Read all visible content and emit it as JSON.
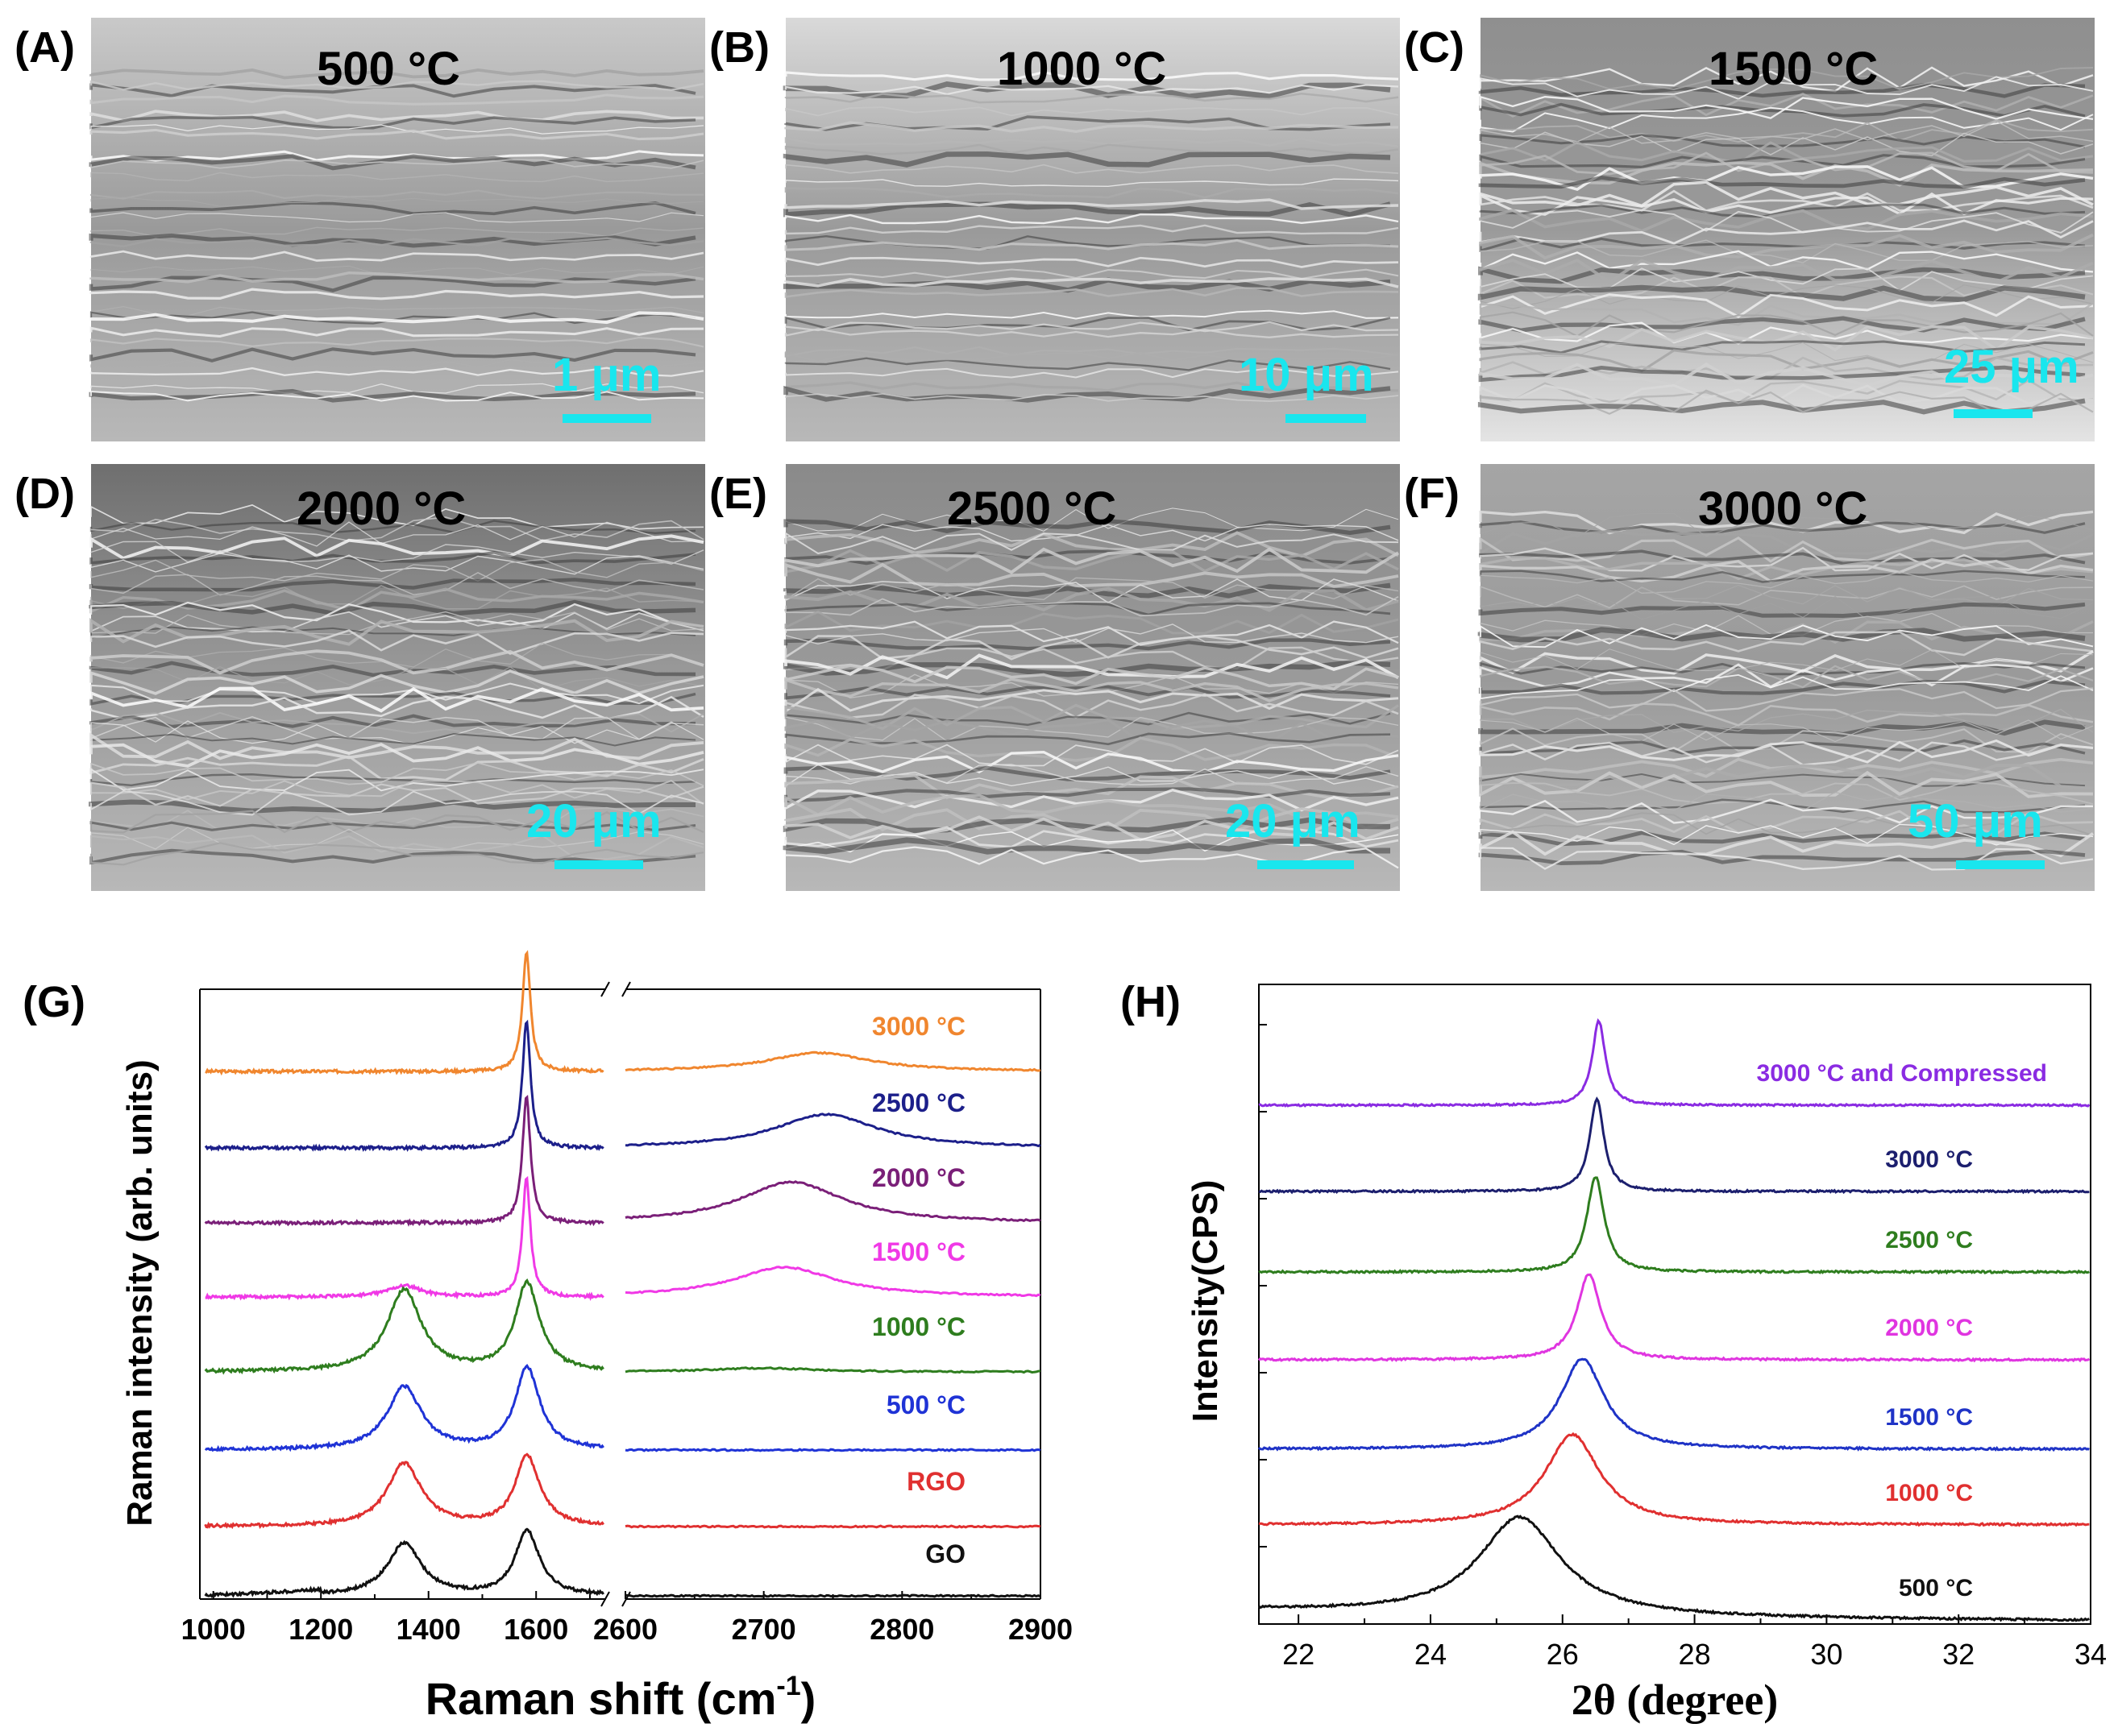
{
  "figure": {
    "sem_panels": [
      {
        "label": "(A)",
        "temperature": "500 °C",
        "scale_bar": "1 μm"
      },
      {
        "label": "(B)",
        "temperature": "1000 °C",
        "scale_bar": "10 μm"
      },
      {
        "label": "(C)",
        "temperature": "1500 °C",
        "scale_bar": "25 μm"
      },
      {
        "label": "(D)",
        "temperature": "2000 °C",
        "scale_bar": "20 μm"
      },
      {
        "label": "(E)",
        "temperature": "2500 °C",
        "scale_bar": "20 μm"
      },
      {
        "label": "(F)",
        "temperature": "3000 °C",
        "scale_bar": "50 μm"
      }
    ],
    "colors": {
      "scale_bar": "#19e6ee"
    }
  },
  "chart_data": [
    {
      "panel": "(G)",
      "type": "line",
      "xlabel": "Raman shift (cm",
      "xlabel_superscript": "-1",
      "xlabel_close": ")",
      "ylabel": "Raman intensity (arb. units)",
      "axis_break": true,
      "xlim_left": [
        975,
        1730
      ],
      "xlim_right": [
        2600,
        2900
      ],
      "ticks_left": [
        "1000",
        "1200",
        "1400",
        "1600"
      ],
      "ticks_right": [
        "2600",
        "2700",
        "2800",
        "2900"
      ],
      "series": [
        {
          "name": "3000 °C",
          "color": "#f0862e",
          "D": 0.0,
          "G": 1.6,
          "G2D": 0.3,
          "twoD": 0.25,
          "twoD_pos": 2740
        },
        {
          "name": "2500 °C",
          "color": "#1c1f8a",
          "D": 0.0,
          "G": 1.7,
          "G2D": 0.35,
          "twoD": 0.45,
          "twoD_pos": 2745
        },
        {
          "name": "2000 °C",
          "color": "#7a1f78",
          "D": 0.0,
          "G": 1.7,
          "G2D": 0.3,
          "twoD": 0.55,
          "twoD_pos": 2720
        },
        {
          "name": "1500 °C",
          "color": "#f039e6",
          "D": 0.15,
          "G": 1.6,
          "G2D": 0.35,
          "twoD": 0.4,
          "twoD_pos": 2715
        },
        {
          "name": "1000 °C",
          "color": "#2e7d1e",
          "D": 1.1,
          "G": 1.1,
          "G2D": 0.4,
          "twoD": 0.05,
          "twoD_pos": 2700
        },
        {
          "name": "500 °C",
          "color": "#1f33d6",
          "D": 0.85,
          "G": 1.0,
          "G2D": 0.45,
          "twoD": 0.0,
          "twoD_pos": 2700
        },
        {
          "name": "RGO",
          "color": "#e03030",
          "D": 0.85,
          "G": 0.85,
          "G2D": 0.4,
          "twoD": 0.0,
          "twoD_pos": 2700
        },
        {
          "name": "GO",
          "color": "#111111",
          "D": 0.7,
          "G": 0.8,
          "G2D": 0.3,
          "twoD": 0.0,
          "twoD_pos": 2700
        }
      ]
    },
    {
      "panel": "(H)",
      "type": "line",
      "xlabel": "2θ (degree)",
      "ylabel": "Intensity(CPS)",
      "xlim": [
        21.4,
        34
      ],
      "ticks": [
        "22",
        "24",
        "26",
        "28",
        "30",
        "32",
        "34"
      ],
      "series": [
        {
          "name": "3000 °C and Compressed",
          "color": "#8a2be2",
          "peak": 26.55,
          "height": 0.95,
          "width": 0.12
        },
        {
          "name": "3000 °C",
          "color": "#1c1f6e",
          "peak": 26.52,
          "height": 1.0,
          "width": 0.13
        },
        {
          "name": "2500 °C",
          "color": "#2e7d1e",
          "peak": 26.5,
          "height": 1.0,
          "width": 0.16
        },
        {
          "name": "2000 °C",
          "color": "#e035e0",
          "peak": 26.4,
          "height": 0.9,
          "width": 0.22
        },
        {
          "name": "1500 °C",
          "color": "#1f33c6",
          "peak": 26.3,
          "height": 0.95,
          "width": 0.4
        },
        {
          "name": "1000 °C",
          "color": "#e03030",
          "peak": 26.15,
          "height": 0.95,
          "width": 0.5
        },
        {
          "name": "500 °C",
          "color": "#111111",
          "peak": 25.35,
          "height": 0.98,
          "width": 0.75
        }
      ]
    }
  ]
}
